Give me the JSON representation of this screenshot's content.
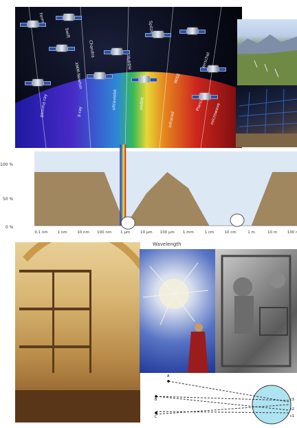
{
  "space_labels": [
    "Fermi",
    "Swift",
    "Chandra",
    "XMM-Newton",
    "Hubble",
    "Spitzer",
    "WISE",
    "Herschel",
    "Planck",
    "gamma ray",
    "X-ray",
    "ultraviolet",
    "visible",
    "infrared",
    "microwave"
  ],
  "chart": {
    "y_ticks": [
      "100 %",
      "50 %",
      "0 %"
    ],
    "x_ticks": [
      "0.1 nm",
      "1 nm",
      "10 nm",
      "100 nm",
      "1 µm",
      "10 µm",
      "100 µm",
      "1 mm",
      "1 cm",
      "10 cm",
      "1 m",
      "10 m",
      "100 m"
    ],
    "x_label": "Wavelength",
    "fill_color": "#a08760",
    "sky_color": "#dde8f5"
  },
  "chart_data": {
    "type": "area",
    "xlabel": "Wavelength",
    "ylabel": "",
    "x_ticks": [
      "0.1 nm",
      "1 nm",
      "10 nm",
      "100 nm",
      "1 µm",
      "10 µm",
      "100 µm",
      "1 mm",
      "1 cm",
      "10 cm",
      "1 m",
      "10 m",
      "100 m"
    ],
    "y_ticks": [
      "100 %",
      "50 %",
      "0 %"
    ],
    "ylim": [
      0,
      100
    ],
    "series": [
      {
        "values": [
          {
            "x": "0.1 nm",
            "y": 100
          },
          {
            "x": "1 nm",
            "y": 100
          },
          {
            "x": "10 nm",
            "y": 100
          },
          {
            "x": "100 nm",
            "y": 100
          },
          {
            "x": "1 µm",
            "y": 0
          },
          {
            "x": "10 µm",
            "y": 60
          },
          {
            "x": "100 µm",
            "y": 100
          },
          {
            "x": "1 mm",
            "y": 70
          },
          {
            "x": "1 cm",
            "y": 0
          },
          {
            "x": "10 cm",
            "y": 0
          },
          {
            "x": "1 m",
            "y": 0
          },
          {
            "x": "10 m",
            "y": 100
          },
          {
            "x": "100 m",
            "y": 100
          }
        ]
      }
    ]
  },
  "parallax": {
    "labels": [
      "A",
      "B",
      "C",
      "c3",
      "c2",
      "c1"
    ]
  }
}
